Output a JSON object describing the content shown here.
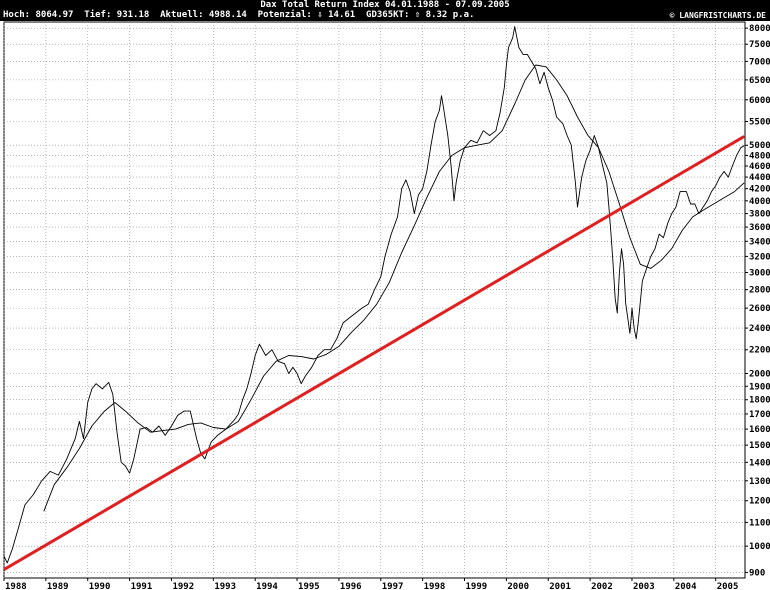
{
  "header": {
    "title": "Dax Total Return Index 04.01.1988 - 07.09.2005",
    "stats": "Hoch: 8064.97  Tief: 931.18  Aktuell: 4988.14  Potenzial: ⇩ 14.61  GD365KT: ⇧ 8.32 p.a.",
    "source": "© LANGFRISTCHARTS.DE"
  },
  "chart_data": {
    "type": "line",
    "y_scale": "log",
    "ylim": [
      880,
      8200
    ],
    "xlim": [
      1988.0,
      2005.7
    ],
    "grid": true,
    "y_ticks": [
      900,
      1000,
      1100,
      1200,
      1300,
      1400,
      1500,
      1600,
      1700,
      1800,
      1900,
      2000,
      2200,
      2400,
      2600,
      2800,
      3000,
      3200,
      3400,
      3600,
      3800,
      4000,
      4200,
      4400,
      4600,
      4800,
      5000,
      5500,
      6000,
      6500,
      7000,
      7500,
      8000
    ],
    "x_ticks": [
      "1988",
      "1989",
      "1990",
      "1991",
      "1992",
      "1993",
      "1994",
      "1995",
      "1996",
      "1997",
      "1998",
      "1999",
      "2000",
      "2001",
      "2002",
      "2003",
      "2004",
      "2005"
    ],
    "series": [
      {
        "color": "#000000",
        "points": [
          [
            1988.0,
            960
          ],
          [
            1988.08,
            935
          ],
          [
            1988.2,
            990
          ],
          [
            1988.35,
            1080
          ],
          [
            1988.5,
            1180
          ],
          [
            1988.7,
            1230
          ],
          [
            1988.9,
            1300
          ],
          [
            1989.1,
            1350
          ],
          [
            1989.3,
            1330
          ],
          [
            1989.5,
            1420
          ],
          [
            1989.7,
            1540
          ],
          [
            1989.8,
            1650
          ],
          [
            1989.9,
            1540
          ],
          [
            1990.0,
            1780
          ],
          [
            1990.1,
            1880
          ],
          [
            1990.2,
            1920
          ],
          [
            1990.35,
            1880
          ],
          [
            1990.5,
            1930
          ],
          [
            1990.6,
            1840
          ],
          [
            1990.7,
            1580
          ],
          [
            1990.8,
            1400
          ],
          [
            1990.9,
            1380
          ],
          [
            1991.0,
            1340
          ],
          [
            1991.1,
            1420
          ],
          [
            1991.25,
            1600
          ],
          [
            1991.4,
            1610
          ],
          [
            1991.55,
            1580
          ],
          [
            1991.7,
            1620
          ],
          [
            1991.85,
            1560
          ],
          [
            1992.0,
            1620
          ],
          [
            1992.15,
            1690
          ],
          [
            1992.3,
            1720
          ],
          [
            1992.45,
            1720
          ],
          [
            1992.6,
            1540
          ],
          [
            1992.7,
            1450
          ],
          [
            1992.8,
            1420
          ],
          [
            1992.95,
            1520
          ],
          [
            1993.1,
            1560
          ],
          [
            1993.3,
            1600
          ],
          [
            1993.5,
            1660
          ],
          [
            1993.6,
            1700
          ],
          [
            1993.7,
            1800
          ],
          [
            1993.8,
            1880
          ],
          [
            1993.9,
            2000
          ],
          [
            1994.0,
            2150
          ],
          [
            1994.1,
            2250
          ],
          [
            1994.25,
            2150
          ],
          [
            1994.4,
            2200
          ],
          [
            1994.55,
            2100
          ],
          [
            1994.7,
            2080
          ],
          [
            1994.8,
            2000
          ],
          [
            1994.9,
            2050
          ],
          [
            1995.0,
            2000
          ],
          [
            1995.1,
            1920
          ],
          [
            1995.2,
            1980
          ],
          [
            1995.35,
            2050
          ],
          [
            1995.5,
            2150
          ],
          [
            1995.65,
            2200
          ],
          [
            1995.8,
            2200
          ],
          [
            1995.95,
            2300
          ],
          [
            1996.1,
            2450
          ],
          [
            1996.25,
            2500
          ],
          [
            1996.4,
            2550
          ],
          [
            1996.55,
            2600
          ],
          [
            1996.7,
            2640
          ],
          [
            1996.85,
            2800
          ],
          [
            1997.0,
            2950
          ],
          [
            1997.1,
            3200
          ],
          [
            1997.25,
            3500
          ],
          [
            1997.4,
            3750
          ],
          [
            1997.5,
            4200
          ],
          [
            1997.6,
            4350
          ],
          [
            1997.7,
            4150
          ],
          [
            1997.8,
            3800
          ],
          [
            1997.9,
            4100
          ],
          [
            1998.0,
            4200
          ],
          [
            1998.1,
            4500
          ],
          [
            1998.2,
            5000
          ],
          [
            1998.3,
            5500
          ],
          [
            1998.4,
            5750
          ],
          [
            1998.45,
            6100
          ],
          [
            1998.5,
            5800
          ],
          [
            1998.6,
            5200
          ],
          [
            1998.68,
            4600
          ],
          [
            1998.75,
            4000
          ],
          [
            1998.8,
            4300
          ],
          [
            1998.9,
            4700
          ],
          [
            1999.0,
            4950
          ],
          [
            1999.15,
            5100
          ],
          [
            1999.3,
            5050
          ],
          [
            1999.45,
            5300
          ],
          [
            1999.6,
            5200
          ],
          [
            1999.75,
            5300
          ],
          [
            1999.85,
            5700
          ],
          [
            1999.95,
            6300
          ],
          [
            2000.0,
            6900
          ],
          [
            2000.05,
            7400
          ],
          [
            2000.15,
            7700
          ],
          [
            2000.2,
            8050
          ],
          [
            2000.3,
            7400
          ],
          [
            2000.4,
            7200
          ],
          [
            2000.5,
            7200
          ],
          [
            2000.6,
            7000
          ],
          [
            2000.7,
            6800
          ],
          [
            2000.8,
            6400
          ],
          [
            2000.9,
            6700
          ],
          [
            2001.0,
            6300
          ],
          [
            2001.1,
            6000
          ],
          [
            2001.2,
            5600
          ],
          [
            2001.35,
            5450
          ],
          [
            2001.45,
            5200
          ],
          [
            2001.55,
            5000
          ],
          [
            2001.65,
            4300
          ],
          [
            2001.7,
            3900
          ],
          [
            2001.8,
            4400
          ],
          [
            2001.9,
            4700
          ],
          [
            2002.0,
            4900
          ],
          [
            2002.1,
            5200
          ],
          [
            2002.2,
            4950
          ],
          [
            2002.3,
            4600
          ],
          [
            2002.4,
            4300
          ],
          [
            2002.45,
            3900
          ],
          [
            2002.5,
            3500
          ],
          [
            2002.55,
            3100
          ],
          [
            2002.6,
            2700
          ],
          [
            2002.65,
            2550
          ],
          [
            2002.7,
            3000
          ],
          [
            2002.75,
            3300
          ],
          [
            2002.8,
            3100
          ],
          [
            2002.85,
            2650
          ],
          [
            2002.95,
            2350
          ],
          [
            2003.0,
            2600
          ],
          [
            2003.05,
            2400
          ],
          [
            2003.1,
            2300
          ],
          [
            2003.15,
            2450
          ],
          [
            2003.25,
            2900
          ],
          [
            2003.35,
            3050
          ],
          [
            2003.45,
            3200
          ],
          [
            2003.55,
            3300
          ],
          [
            2003.65,
            3500
          ],
          [
            2003.75,
            3450
          ],
          [
            2003.85,
            3650
          ],
          [
            2003.95,
            3800
          ],
          [
            2004.05,
            3900
          ],
          [
            2004.15,
            4150
          ],
          [
            2004.3,
            4150
          ],
          [
            2004.4,
            3950
          ],
          [
            2004.5,
            3950
          ],
          [
            2004.6,
            3800
          ],
          [
            2004.7,
            3900
          ],
          [
            2004.8,
            4000
          ],
          [
            2004.9,
            4150
          ],
          [
            2005.0,
            4250
          ],
          [
            2005.1,
            4400
          ],
          [
            2005.2,
            4500
          ],
          [
            2005.3,
            4400
          ],
          [
            2005.4,
            4600
          ],
          [
            2005.5,
            4800
          ],
          [
            2005.6,
            4950
          ],
          [
            2005.68,
            4990
          ]
        ]
      },
      {
        "color": "#000000",
        "points": [
          [
            1988.95,
            1150
          ],
          [
            1989.2,
            1280
          ],
          [
            1989.5,
            1370
          ],
          [
            1989.8,
            1480
          ],
          [
            1990.1,
            1620
          ],
          [
            1990.4,
            1720
          ],
          [
            1990.65,
            1780
          ],
          [
            1990.9,
            1720
          ],
          [
            1991.2,
            1640
          ],
          [
            1991.5,
            1580
          ],
          [
            1991.8,
            1590
          ],
          [
            1992.1,
            1600
          ],
          [
            1992.4,
            1630
          ],
          [
            1992.7,
            1640
          ],
          [
            1993.0,
            1610
          ],
          [
            1993.3,
            1600
          ],
          [
            1993.6,
            1650
          ],
          [
            1993.9,
            1800
          ],
          [
            1994.2,
            1980
          ],
          [
            1994.5,
            2100
          ],
          [
            1994.8,
            2150
          ],
          [
            1995.1,
            2140
          ],
          [
            1995.4,
            2120
          ],
          [
            1995.7,
            2160
          ],
          [
            1996.0,
            2230
          ],
          [
            1996.3,
            2360
          ],
          [
            1996.6,
            2480
          ],
          [
            1996.9,
            2640
          ],
          [
            1997.2,
            2880
          ],
          [
            1997.5,
            3250
          ],
          [
            1997.8,
            3620
          ],
          [
            1998.1,
            4050
          ],
          [
            1998.4,
            4500
          ],
          [
            1998.7,
            4800
          ],
          [
            1999.0,
            4950
          ],
          [
            1999.3,
            5000
          ],
          [
            1999.6,
            5050
          ],
          [
            1999.9,
            5300
          ],
          [
            2000.2,
            5900
          ],
          [
            2000.45,
            6500
          ],
          [
            2000.7,
            6900
          ],
          [
            2000.95,
            6850
          ],
          [
            2001.2,
            6500
          ],
          [
            2001.45,
            6100
          ],
          [
            2001.7,
            5600
          ],
          [
            2001.95,
            5200
          ],
          [
            2002.2,
            4950
          ],
          [
            2002.45,
            4500
          ],
          [
            2002.7,
            3950
          ],
          [
            2002.95,
            3450
          ],
          [
            2003.2,
            3100
          ],
          [
            2003.45,
            3050
          ],
          [
            2003.7,
            3150
          ],
          [
            2003.95,
            3300
          ],
          [
            2004.2,
            3550
          ],
          [
            2004.45,
            3750
          ],
          [
            2004.7,
            3850
          ],
          [
            2004.95,
            3950
          ],
          [
            2005.2,
            4050
          ],
          [
            2005.45,
            4150
          ],
          [
            2005.68,
            4300
          ]
        ]
      },
      {
        "color": "#e02020",
        "points": [
          [
            1988.0,
            910
          ],
          [
            2005.68,
            5180
          ]
        ]
      }
    ]
  }
}
